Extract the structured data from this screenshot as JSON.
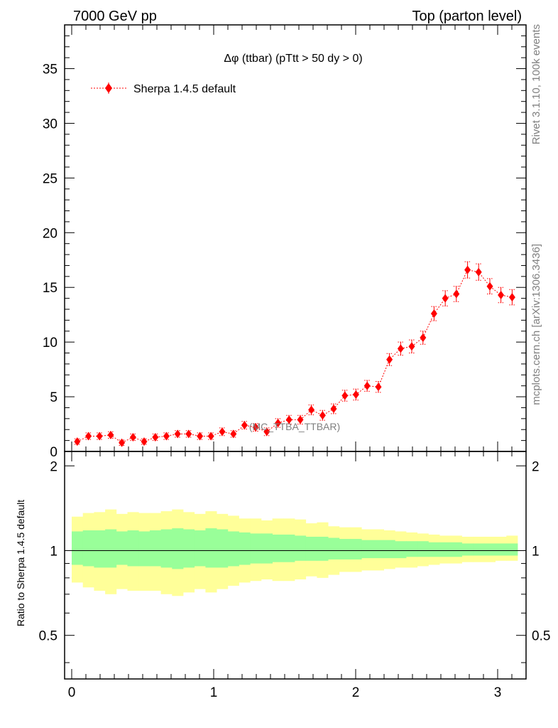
{
  "header": {
    "left": "7000 GeV pp",
    "right": "Top (parton level)"
  },
  "side": {
    "rivet": "Rivet 3.1.10,  100k events",
    "source": "mcplots.cern.ch [arXiv:1306.3436]"
  },
  "watermark": "(MC_TTBA_TTBAR)",
  "chart_data": [
    {
      "type": "scatter",
      "title": "Δφ (ttbar) (pTtt > 50 dy > 0)",
      "xlim": [
        -0.05,
        3.2
      ],
      "ylim": [
        0,
        39
      ],
      "yticks": [
        "0",
        "5",
        "10",
        "15",
        "20",
        "25",
        "30",
        "35"
      ],
      "ytick_values": [
        0,
        5,
        10,
        15,
        20,
        25,
        30,
        35
      ],
      "legend": "top-left",
      "color": "#ff0000",
      "series": [
        {
          "name": "Sherpa 1.4.5 default",
          "x": [
            0.039,
            0.118,
            0.196,
            0.275,
            0.353,
            0.432,
            0.51,
            0.589,
            0.667,
            0.746,
            0.824,
            0.903,
            0.981,
            1.06,
            1.139,
            1.217,
            1.296,
            1.374,
            1.453,
            1.531,
            1.61,
            1.688,
            1.767,
            1.845,
            1.924,
            2.002,
            2.081,
            2.16,
            2.238,
            2.317,
            2.395,
            2.474,
            2.552,
            2.631,
            2.709,
            2.788,
            2.866,
            2.945,
            3.023,
            3.102
          ],
          "y": [
            0.9,
            1.4,
            1.4,
            1.5,
            0.8,
            1.3,
            0.9,
            1.3,
            1.4,
            1.6,
            1.6,
            1.4,
            1.4,
            1.8,
            1.6,
            2.4,
            2.2,
            1.8,
            2.6,
            2.9,
            2.9,
            3.8,
            3.3,
            3.9,
            5.1,
            5.2,
            6.0,
            5.9,
            8.4,
            9.4,
            9.6,
            10.4,
            12.6,
            14.0,
            14.4,
            16.6,
            16.4,
            15.1,
            14.3,
            14.1
          ],
          "yerr": [
            0.25,
            0.3,
            0.3,
            0.3,
            0.25,
            0.3,
            0.25,
            0.3,
            0.3,
            0.3,
            0.3,
            0.3,
            0.3,
            0.35,
            0.3,
            0.35,
            0.35,
            0.35,
            0.4,
            0.4,
            0.4,
            0.45,
            0.45,
            0.45,
            0.5,
            0.5,
            0.5,
            0.5,
            0.55,
            0.6,
            0.6,
            0.6,
            0.65,
            0.7,
            0.7,
            0.75,
            0.75,
            0.7,
            0.7,
            0.7
          ]
        }
      ]
    },
    {
      "type": "area",
      "ylabel": "Ratio to Sherpa 1.4.5 default",
      "xlim": [
        -0.05,
        3.2
      ],
      "ylim": [
        0.35,
        2.25
      ],
      "xticks": [
        "0",
        "1",
        "2",
        "3"
      ],
      "xtick_values": [
        0,
        1,
        2,
        3
      ],
      "yticks": [
        "0.5",
        "1",
        "2"
      ],
      "ytick_values": [
        0.5,
        1,
        2
      ],
      "reference_line": 1,
      "bin_edges": [
        0.0,
        0.0785,
        0.157,
        0.2355,
        0.314,
        0.3925,
        0.471,
        0.5495,
        0.628,
        0.7065,
        0.785,
        0.8635,
        0.942,
        1.0205,
        1.099,
        1.1775,
        1.256,
        1.3345,
        1.413,
        1.4915,
        1.57,
        1.6485,
        1.727,
        1.8055,
        1.884,
        1.9625,
        2.041,
        2.1195,
        2.198,
        2.2765,
        2.355,
        2.4335,
        2.512,
        2.5905,
        2.669,
        2.7475,
        2.826,
        2.9045,
        2.983,
        3.0615,
        3.14
      ],
      "bands": [
        {
          "name": "stat",
          "color": "#99ff99",
          "up": [
            1.17,
            1.18,
            1.18,
            1.19,
            1.17,
            1.18,
            1.17,
            1.18,
            1.19,
            1.2,
            1.19,
            1.18,
            1.2,
            1.19,
            1.17,
            1.16,
            1.15,
            1.15,
            1.14,
            1.14,
            1.13,
            1.12,
            1.12,
            1.11,
            1.1,
            1.1,
            1.09,
            1.09,
            1.09,
            1.08,
            1.08,
            1.08,
            1.07,
            1.07,
            1.07,
            1.06,
            1.06,
            1.06,
            1.06,
            1.06
          ],
          "down": [
            0.89,
            0.88,
            0.87,
            0.87,
            0.89,
            0.88,
            0.88,
            0.88,
            0.87,
            0.86,
            0.87,
            0.88,
            0.87,
            0.87,
            0.88,
            0.89,
            0.9,
            0.9,
            0.91,
            0.91,
            0.92,
            0.92,
            0.92,
            0.93,
            0.93,
            0.93,
            0.94,
            0.94,
            0.94,
            0.94,
            0.95,
            0.95,
            0.95,
            0.95,
            0.95,
            0.96,
            0.96,
            0.96,
            0.96,
            0.96
          ]
        },
        {
          "name": "total",
          "color": "#ffff99",
          "up": [
            1.32,
            1.36,
            1.37,
            1.4,
            1.35,
            1.37,
            1.36,
            1.36,
            1.38,
            1.4,
            1.37,
            1.35,
            1.38,
            1.35,
            1.33,
            1.3,
            1.3,
            1.28,
            1.3,
            1.3,
            1.29,
            1.25,
            1.26,
            1.22,
            1.21,
            1.21,
            1.19,
            1.19,
            1.18,
            1.17,
            1.16,
            1.15,
            1.14,
            1.13,
            1.13,
            1.12,
            1.12,
            1.12,
            1.12,
            1.13
          ],
          "down": [
            0.77,
            0.74,
            0.72,
            0.7,
            0.73,
            0.72,
            0.72,
            0.72,
            0.7,
            0.69,
            0.71,
            0.73,
            0.71,
            0.73,
            0.75,
            0.77,
            0.78,
            0.79,
            0.78,
            0.78,
            0.79,
            0.81,
            0.8,
            0.82,
            0.84,
            0.84,
            0.85,
            0.85,
            0.86,
            0.87,
            0.87,
            0.88,
            0.89,
            0.9,
            0.9,
            0.91,
            0.91,
            0.91,
            0.92,
            0.92
          ]
        }
      ]
    }
  ]
}
